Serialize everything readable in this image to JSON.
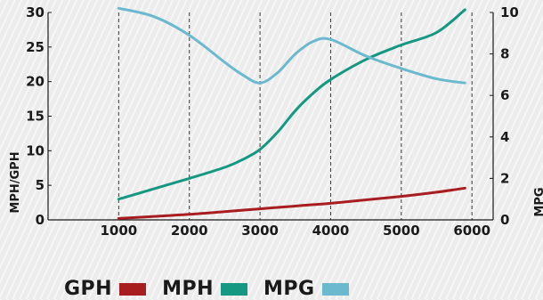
{
  "chart_data": {
    "type": "line",
    "x": [
      1000,
      1500,
      2000,
      2500,
      2750,
      3000,
      3250,
      3500,
      3750,
      4000,
      4500,
      5000,
      5500,
      5900
    ],
    "xticks": [
      1000,
      2000,
      3000,
      4000,
      5000,
      6000
    ],
    "xlim": [
      0,
      6300
    ],
    "ylabel_left": "MPH/GPH",
    "ylim_left": [
      0,
      30
    ],
    "yticks_left": [
      0,
      5,
      10,
      15,
      20,
      25,
      30
    ],
    "ylabel_right": "MPG",
    "ylim_right": [
      0,
      10
    ],
    "yticks_right": [
      0,
      2,
      4,
      6,
      8,
      10
    ],
    "grid": "vertical dashed at x ticks",
    "legend_position": "bottom-left",
    "series": [
      {
        "name": "GPH",
        "axis": "left",
        "color": "#a81e20",
        "values": [
          0.2,
          0.5,
          0.8,
          1.2,
          1.4,
          1.6,
          1.8,
          2.0,
          2.2,
          2.4,
          2.9,
          3.4,
          4.0,
          4.6
        ]
      },
      {
        "name": "MPH",
        "axis": "left",
        "color": "#149882",
        "values": [
          3.0,
          4.5,
          6.0,
          7.6,
          8.7,
          10.2,
          12.7,
          15.8,
          18.3,
          20.3,
          23.2,
          25.3,
          27.1,
          30.4
        ]
      },
      {
        "name": "MPG",
        "axis": "right",
        "color": "#6bb9cf",
        "values": [
          10.2,
          9.8,
          8.9,
          7.6,
          7.0,
          6.6,
          7.1,
          8.0,
          8.6,
          8.7,
          7.9,
          7.3,
          6.8,
          6.6
        ]
      }
    ]
  }
}
